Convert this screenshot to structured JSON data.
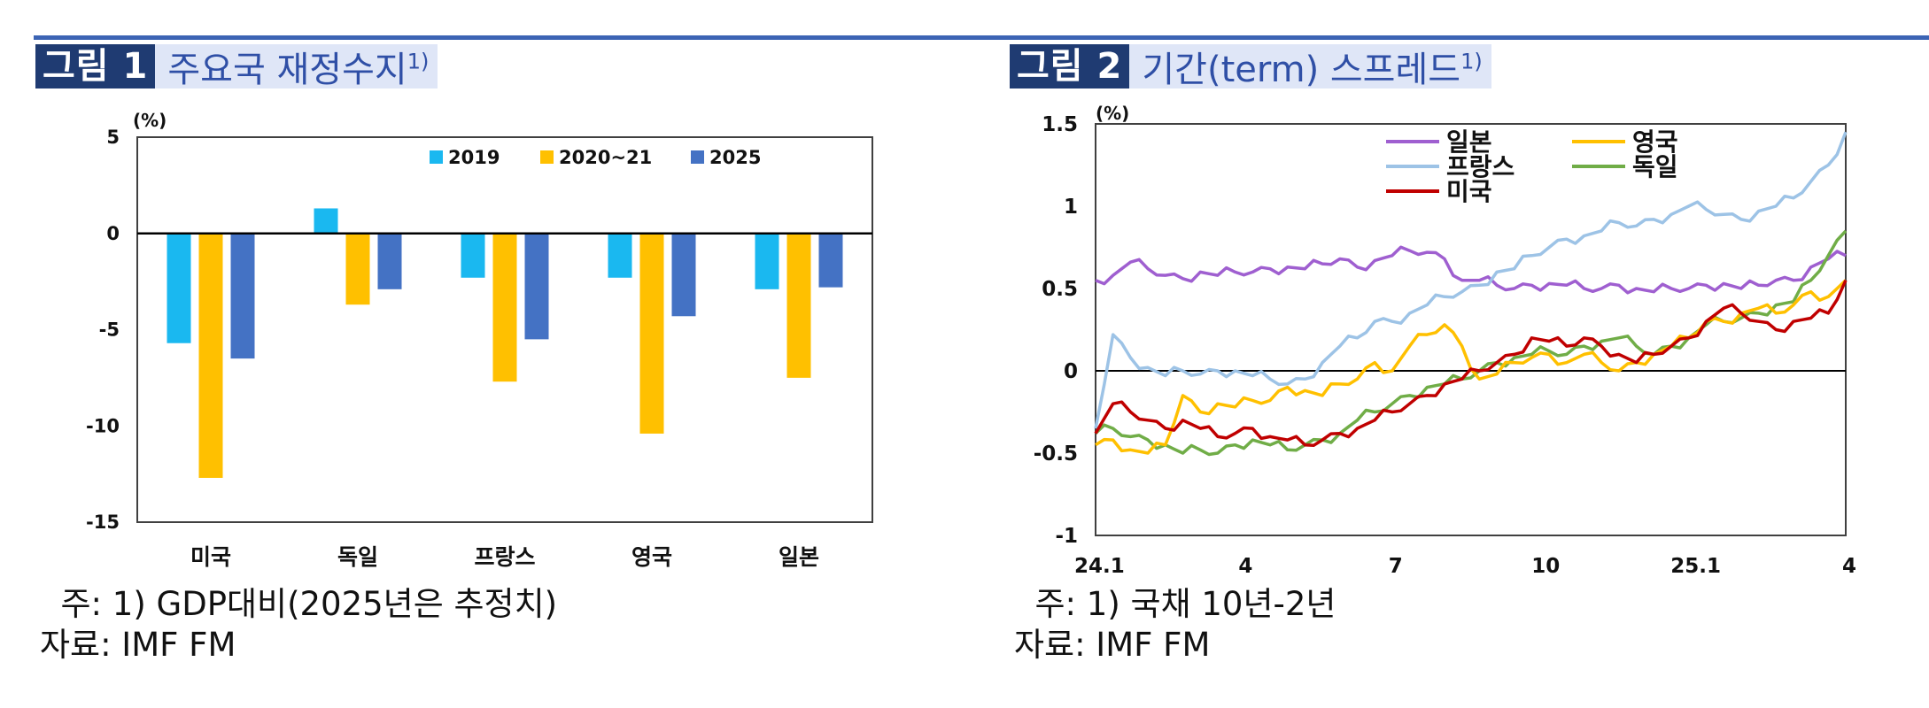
{
  "figures": [
    {
      "badge": "그림 1",
      "title": "주요국 재정수지",
      "title_sup": "1)",
      "note": "  주: 1) GDP대비(2025년은 추정치)",
      "source": "자료: IMF FM"
    },
    {
      "badge": "그림 2",
      "title": "기간(term) 스프레드",
      "title_sup": "1)",
      "note": "  주: 1) 국채 10년-2년",
      "source": "자료: IMF FM"
    }
  ],
  "chart_data": [
    {
      "type": "bar",
      "unit_label": "(%)",
      "categories": [
        "미국",
        "독일",
        "프랑스",
        "영국",
        "일본"
      ],
      "series": [
        {
          "name": "2019",
          "color": "#1ab8f0",
          "values": [
            -5.7,
            1.3,
            -2.3,
            -2.3,
            -2.9
          ]
        },
        {
          "name": "2020~21",
          "color": "#ffc000",
          "values": [
            -12.7,
            -3.7,
            -7.7,
            -10.4,
            -7.5
          ]
        },
        {
          "name": "2025",
          "color": "#4472c4",
          "values": [
            -6.5,
            -2.9,
            -5.5,
            -4.3,
            -2.8
          ]
        }
      ],
      "ylim": [
        -15,
        5
      ],
      "yticks": [
        "5",
        "0",
        "-5",
        "-10",
        "-15"
      ],
      "legend": "top"
    },
    {
      "type": "line",
      "unit_label": "(%)",
      "ylim": [
        -1,
        1.5
      ],
      "yticks": [
        "1.5",
        "1",
        "0.5",
        "0",
        "-0.5",
        "-1"
      ],
      "xticks": [
        "24.1",
        "4",
        "7",
        "10",
        "25.1",
        "4"
      ],
      "legend": "top-center",
      "series": [
        {
          "name": "일본",
          "color": "#9f5fd0",
          "values": [
            0.55,
            0.58,
            0.66,
            0.62,
            0.58,
            0.56,
            0.6,
            0.58,
            0.6,
            0.6,
            0.62,
            0.63,
            0.62,
            0.65,
            0.68,
            0.63,
            0.67,
            0.7,
            0.73,
            0.72,
            0.68,
            0.55,
            0.55,
            0.52,
            0.5,
            0.52,
            0.53,
            0.52,
            0.5,
            0.5,
            0.52,
            0.5,
            0.48,
            0.5,
            0.5,
            0.52,
            0.53,
            0.5,
            0.52,
            0.55,
            0.55,
            0.63,
            0.68,
            0.7
          ]
        },
        {
          "name": "영국",
          "color": "#ffc000",
          "values": [
            -0.45,
            -0.42,
            -0.48,
            -0.5,
            -0.45,
            -0.15,
            -0.25,
            -0.2,
            -0.22,
            -0.18,
            -0.18,
            -0.1,
            -0.12,
            -0.15,
            -0.08,
            -0.05,
            0.05,
            0.0,
            0.15,
            0.22,
            0.28,
            0.15,
            -0.05,
            -0.02,
            0.05,
            0.08,
            0.1,
            0.05,
            0.1,
            0.05,
            0.0,
            0.05,
            0.1,
            0.15,
            0.2,
            0.3,
            0.3,
            0.35,
            0.38,
            0.35,
            0.4,
            0.48,
            0.45,
            0.55
          ]
        },
        {
          "name": "프랑스",
          "color": "#9dc3e6",
          "values": [
            -0.35,
            0.22,
            0.08,
            0.02,
            -0.03,
            0.0,
            -0.02,
            0.0,
            0.0,
            -0.03,
            -0.05,
            -0.08,
            -0.05,
            0.05,
            0.15,
            0.2,
            0.3,
            0.3,
            0.35,
            0.4,
            0.45,
            0.48,
            0.52,
            0.6,
            0.62,
            0.7,
            0.75,
            0.8,
            0.82,
            0.85,
            0.9,
            0.88,
            0.92,
            0.95,
            1.0,
            0.98,
            0.95,
            0.92,
            0.97,
            1.0,
            1.05,
            1.15,
            1.25,
            1.45
          ]
        },
        {
          "name": "독일",
          "color": "#70ad47",
          "values": [
            -0.38,
            -0.35,
            -0.4,
            -0.42,
            -0.45,
            -0.5,
            -0.48,
            -0.5,
            -0.45,
            -0.42,
            -0.45,
            -0.48,
            -0.45,
            -0.42,
            -0.38,
            -0.3,
            -0.25,
            -0.2,
            -0.15,
            -0.1,
            -0.08,
            -0.05,
            0.0,
            0.05,
            0.08,
            0.1,
            0.12,
            0.1,
            0.15,
            0.18,
            0.2,
            0.15,
            0.1,
            0.15,
            0.2,
            0.28,
            0.3,
            0.32,
            0.35,
            0.4,
            0.42,
            0.55,
            0.7,
            0.85
          ]
        },
        {
          "name": "미국",
          "color": "#c00000",
          "values": [
            -0.38,
            -0.2,
            -0.25,
            -0.3,
            -0.35,
            -0.3,
            -0.35,
            -0.4,
            -0.38,
            -0.35,
            -0.4,
            -0.42,
            -0.45,
            -0.42,
            -0.38,
            -0.35,
            -0.3,
            -0.25,
            -0.2,
            -0.15,
            -0.08,
            -0.05,
            0.0,
            0.05,
            0.1,
            0.2,
            0.18,
            0.15,
            0.2,
            0.15,
            0.1,
            0.05,
            0.1,
            0.15,
            0.2,
            0.3,
            0.38,
            0.35,
            0.3,
            0.25,
            0.3,
            0.32,
            0.35,
            0.55
          ]
        }
      ]
    }
  ]
}
